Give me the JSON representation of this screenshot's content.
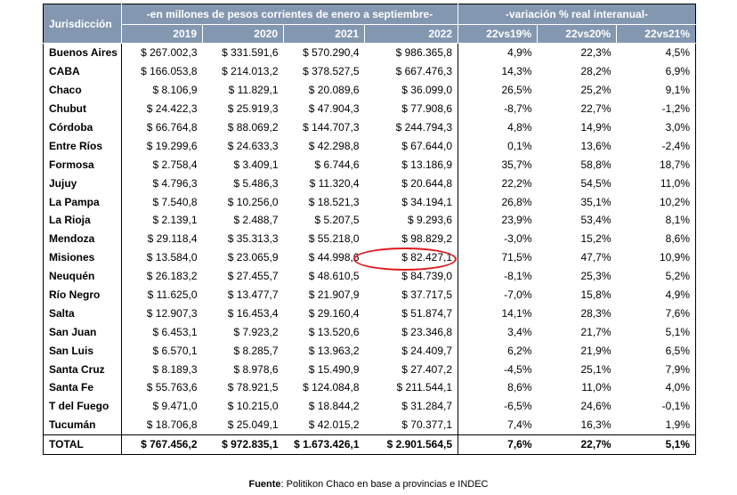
{
  "header": {
    "jurisdiccion": "Jurisdicción",
    "group_nominal": "-en millones de pesos corrientes de enero a septiembre-",
    "group_variation": "-variación % real interanual-",
    "columns": [
      "2019",
      "2020",
      "2021",
      "2022",
      "22vs19%",
      "22vs20%",
      "22vs21%"
    ]
  },
  "rows": [
    {
      "name": "Buenos Aires",
      "values": [
        "$ 267.002,3",
        "$ 331.591,6",
        "$ 570.290,4",
        "$ 986.365,8",
        "4,9%",
        "22,3%",
        "4,5%"
      ]
    },
    {
      "name": "CABA",
      "values": [
        "$ 166.053,8",
        "$ 214.013,2",
        "$ 378.527,5",
        "$ 667.476,3",
        "14,3%",
        "28,2%",
        "6,9%"
      ]
    },
    {
      "name": "Chaco",
      "values": [
        "$ 8.106,9",
        "$ 11.829,1",
        "$ 20.089,6",
        "$ 36.099,0",
        "26,5%",
        "25,2%",
        "9,1%"
      ]
    },
    {
      "name": "Chubut",
      "values": [
        "$ 24.422,3",
        "$ 25.919,3",
        "$ 47.904,3",
        "$ 77.908,6",
        "-8,7%",
        "22,7%",
        "-1,2%"
      ]
    },
    {
      "name": "Córdoba",
      "values": [
        "$ 66.764,8",
        "$ 88.069,2",
        "$ 144.707,3",
        "$ 244.794,3",
        "4,8%",
        "14,9%",
        "3,0%"
      ]
    },
    {
      "name": "Entre Ríos",
      "values": [
        "$ 19.299,6",
        "$ 24.633,3",
        "$ 42.298,8",
        "$ 67.644,0",
        "0,1%",
        "13,6%",
        "-2,4%"
      ]
    },
    {
      "name": "Formosa",
      "values": [
        "$ 2.758,4",
        "$ 3.409,1",
        "$ 6.744,6",
        "$ 13.186,9",
        "35,7%",
        "58,8%",
        "18,7%"
      ]
    },
    {
      "name": "Jujuy",
      "values": [
        "$ 4.796,3",
        "$ 5.486,3",
        "$ 11.320,4",
        "$ 20.644,8",
        "22,2%",
        "54,5%",
        "11,0%"
      ]
    },
    {
      "name": "La Pampa",
      "values": [
        "$ 7.540,8",
        "$ 10.256,0",
        "$ 18.521,3",
        "$ 34.194,1",
        "26,8%",
        "35,1%",
        "10,2%"
      ]
    },
    {
      "name": "La Rioja",
      "values": [
        "$ 2.139,1",
        "$ 2.488,7",
        "$ 5.207,5",
        "$ 9.293,6",
        "23,9%",
        "53,4%",
        "8,1%"
      ]
    },
    {
      "name": "Mendoza",
      "values": [
        "$ 29.118,4",
        "$ 35.313,3",
        "$ 55.218,0",
        "$ 98.829,2",
        "-3,0%",
        "15,2%",
        "8,6%"
      ]
    },
    {
      "name": "Misiones",
      "values": [
        "$ 13.584,0",
        "$ 23.065,9",
        "$ 44.998,6",
        "$ 82.427,1",
        "71,5%",
        "47,7%",
        "10,9%"
      ]
    },
    {
      "name": "Neuquén",
      "values": [
        "$ 26.183,2",
        "$ 27.455,7",
        "$ 48.610,5",
        "$ 84.739,0",
        "-8,1%",
        "25,3%",
        "5,2%"
      ]
    },
    {
      "name": "Río Negro",
      "values": [
        "$ 11.625,0",
        "$ 13.477,7",
        "$ 21.907,9",
        "$ 37.717,5",
        "-7,0%",
        "15,8%",
        "4,9%"
      ]
    },
    {
      "name": "Salta",
      "values": [
        "$ 12.907,3",
        "$ 16.453,4",
        "$ 29.160,4",
        "$ 51.874,7",
        "14,1%",
        "28,3%",
        "7,6%"
      ]
    },
    {
      "name": "San Juan",
      "values": [
        "$ 6.453,1",
        "$ 7.923,2",
        "$ 13.520,6",
        "$ 23.346,8",
        "3,4%",
        "21,7%",
        "5,1%"
      ]
    },
    {
      "name": "San Luis",
      "values": [
        "$ 6.570,1",
        "$ 8.285,7",
        "$ 13.963,2",
        "$ 24.409,7",
        "6,2%",
        "21,9%",
        "6,5%"
      ]
    },
    {
      "name": "Santa Cruz",
      "values": [
        "$ 8.189,3",
        "$ 8.978,6",
        "$ 15.490,9",
        "$ 27.407,2",
        "-4,5%",
        "25,1%",
        "7,9%"
      ]
    },
    {
      "name": "Santa Fe",
      "values": [
        "$ 55.763,6",
        "$ 78.921,5",
        "$ 124.084,8",
        "$ 211.544,1",
        "8,6%",
        "11,0%",
        "4,0%"
      ]
    },
    {
      "name": "T del Fuego",
      "values": [
        "$ 9.471,0",
        "$ 10.215,0",
        "$ 18.844,2",
        "$ 31.284,7",
        "-6,5%",
        "24,6%",
        "-0,1%"
      ]
    },
    {
      "name": "Tucumán",
      "values": [
        "$ 18.706,8",
        "$ 25.049,1",
        "$ 42.015,2",
        "$ 70.377,1",
        "7,4%",
        "16,3%",
        "1,9%"
      ]
    }
  ],
  "total": {
    "name": "TOTAL",
    "values": [
      "$ 767.456,2",
      "$ 972.835,1",
      "$ 1.673.426,1",
      "$ 2.901.564,5",
      "7,6%",
      "22,7%",
      "5,1%"
    ]
  },
  "highlight": {
    "row": "Misiones",
    "column": "2022",
    "color": "#e0181c"
  },
  "colors": {
    "header_bg": "#8497b0",
    "header_text": "#ffffff"
  },
  "source": {
    "label": "Fuente",
    "text": ": Politikon Chaco en base a provincias e INDEC"
  }
}
